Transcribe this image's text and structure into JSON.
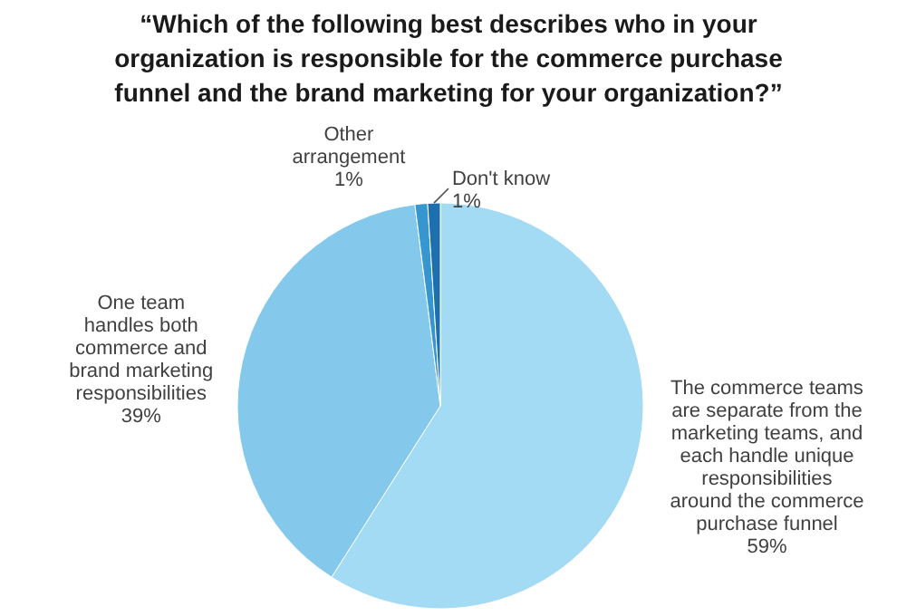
{
  "chart_data": {
    "type": "pie",
    "title": "“Which of the following best describes who in your organization is responsible for the commerce purchase funnel and the brand marketing for your organization?”",
    "categories": [
      "The commerce teams are separate from the marketing teams, and each handle unique responsibilities around the commerce purchase funnel",
      "One team handles both commerce and brand marketing responsibilities",
      "Other arrangement",
      "Don't know"
    ],
    "values": [
      59,
      39,
      1,
      1
    ],
    "colors": [
      "#a3dbf5",
      "#84c9ec",
      "#3596d0",
      "#1e6fae"
    ],
    "value_labels": [
      "59%",
      "39%",
      "1%",
      "1%"
    ]
  }
}
